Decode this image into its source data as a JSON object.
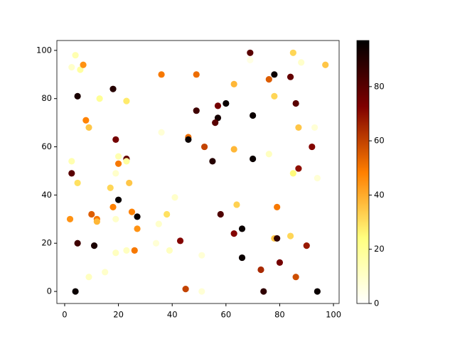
{
  "chart_data": {
    "type": "scatter",
    "colormap": "afmhot_r",
    "x": [
      4,
      2.6,
      5.8,
      6.9,
      4.8,
      7.9,
      9,
      13,
      18,
      23,
      36,
      49,
      69,
      69,
      76,
      78,
      84,
      85,
      88,
      97,
      63,
      60,
      57,
      49,
      70,
      57,
      56,
      78,
      86,
      87,
      93,
      36,
      46,
      46,
      19,
      52,
      63,
      92,
      2.6,
      20,
      23,
      23,
      20,
      55,
      70,
      76,
      87,
      85,
      2.6,
      19,
      4.8,
      24,
      17,
      94,
      20,
      41,
      64,
      18,
      79,
      2,
      10,
      25,
      27,
      38,
      58,
      12,
      12,
      19,
      35,
      27,
      66,
      63,
      84,
      78,
      79,
      43,
      4.8,
      34,
      11,
      90,
      23,
      26,
      39,
      19,
      51,
      66,
      80,
      73,
      15,
      9,
      86,
      45,
      4,
      51,
      74,
      94
    ],
    "y": [
      98,
      93,
      92,
      94,
      81,
      71,
      68,
      80,
      84,
      79,
      90,
      90,
      99,
      96,
      88,
      90,
      89,
      99,
      95,
      94,
      86,
      78,
      77,
      75,
      73,
      72,
      70,
      81,
      78,
      68,
      68,
      66,
      64,
      63,
      63,
      60,
      59,
      60,
      54,
      56,
      55,
      54,
      53,
      54,
      55,
      57,
      51,
      49,
      49,
      49,
      45,
      45,
      43,
      47,
      38,
      39,
      36,
      35,
      35,
      30,
      32,
      33,
      31,
      32,
      32,
      30,
      29,
      30,
      28,
      26,
      26,
      24,
      23,
      22,
      22,
      21,
      20,
      20,
      19,
      19,
      17,
      17,
      17,
      16,
      15,
      14,
      12,
      9,
      8,
      6,
      6,
      1,
      0,
      0,
      0,
      0
    ],
    "c": [
      15,
      10,
      18,
      45,
      92,
      48,
      35,
      20,
      90,
      28,
      50,
      52,
      80,
      5,
      55,
      95,
      78,
      32,
      10,
      35,
      38,
      95,
      75,
      85,
      95,
      93,
      80,
      32,
      80,
      35,
      8,
      8,
      52,
      95,
      75,
      60,
      38,
      72,
      15,
      15,
      78,
      18,
      50,
      90,
      95,
      12,
      70,
      25,
      80,
      10,
      30,
      35,
      32,
      8,
      95,
      10,
      33,
      48,
      50,
      45,
      55,
      48,
      95,
      30,
      82,
      50,
      38,
      10,
      10,
      45,
      95,
      72,
      32,
      35,
      88,
      72,
      85,
      8,
      92,
      68,
      12,
      50,
      12,
      12,
      8,
      95,
      75,
      65,
      10,
      12,
      58,
      60,
      95,
      8,
      88,
      95
    ],
    "xlim": [
      -2.9,
      102.1
    ],
    "ylim": [
      -5,
      104.1
    ],
    "xticks": [
      0,
      20,
      40,
      60,
      80,
      100
    ],
    "yticks": [
      0,
      20,
      40,
      60,
      80,
      100
    ],
    "clim": [
      0,
      97
    ],
    "cticks": [
      0,
      20,
      40,
      60,
      80
    ]
  }
}
